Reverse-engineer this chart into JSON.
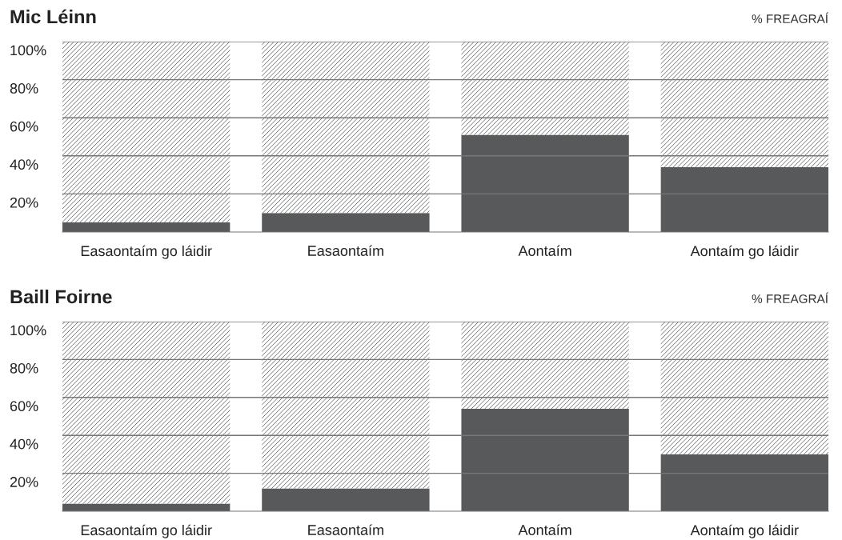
{
  "chart_data": [
    {
      "type": "bar",
      "title": "Mic Léinn",
      "ylabel": "% FREAGRAÍ",
      "stacked": true,
      "grid": "y",
      "categories": [
        "Easaontaím go láidir",
        "Easaontaím",
        "Aontaím",
        "Aontaím go láidir"
      ],
      "series": [
        {
          "color": "#58595b",
          "values": [
            5,
            10,
            51,
            34
          ]
        },
        {
          "color": "#ffffff",
          "values": [
            95,
            90,
            49,
            66
          ]
        }
      ],
      "ylim": [
        0,
        100
      ],
      "yticks": [
        {
          "value": 20,
          "label": "20%"
        },
        {
          "value": 40,
          "label": "40%"
        },
        {
          "value": 60,
          "label": "60%"
        },
        {
          "value": 80,
          "label": "80%"
        },
        {
          "value": 100,
          "label": "100%"
        }
      ]
    },
    {
      "type": "bar",
      "title": "Baill Foirne",
      "ylabel": "% FREAGRAÍ",
      "stacked": true,
      "grid": "y",
      "categories": [
        "Easaontaím go láidir",
        "Easaontaím",
        "Aontaím",
        "Aontaím go láidir"
      ],
      "series": [
        {
          "color": "#58595b",
          "values": [
            4,
            12,
            54,
            30
          ]
        },
        {
          "color": "#ffffff",
          "values": [
            96,
            88,
            46,
            70
          ]
        }
      ],
      "ylim": [
        0,
        100
      ],
      "yticks": [
        {
          "value": 20,
          "label": "20%"
        },
        {
          "value": 40,
          "label": "40%"
        },
        {
          "value": 60,
          "label": "60%"
        },
        {
          "value": 80,
          "label": "80%"
        },
        {
          "value": 100,
          "label": "100%"
        }
      ]
    }
  ]
}
